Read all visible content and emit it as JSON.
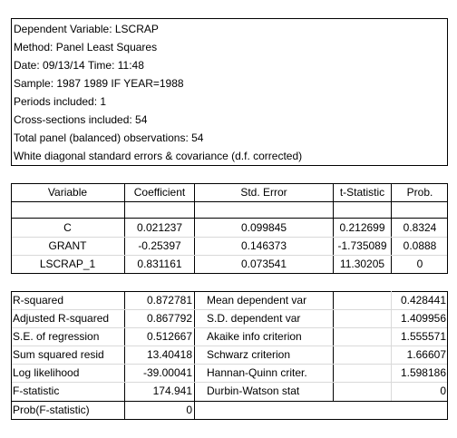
{
  "header": [
    "Dependent Variable: LSCRAP",
    "Method: Panel Least Squares",
    "Date: 09/13/14   Time: 11:48",
    "Sample: 1987 1989 IF YEAR=1988",
    "Periods included: 1",
    "Cross-sections included: 54",
    "Total panel (balanced) observations: 54",
    "White diagonal standard errors & covariance (d.f. corrected)"
  ],
  "coef_table": {
    "columns": [
      "Variable",
      "Coefficient",
      "Std. Error",
      "t-Statistic",
      "Prob."
    ],
    "rows": [
      {
        "variable": "C",
        "coefficient": "0.021237",
        "std_error": "0.099845",
        "t_stat": "0.212699",
        "prob": "0.8324"
      },
      {
        "variable": "GRANT",
        "coefficient": "-0.25397",
        "std_error": "0.146373",
        "t_stat": "-1.735089",
        "prob": "0.0888"
      },
      {
        "variable": "LSCRAP_1",
        "coefficient": "0.831161",
        "std_error": "0.073541",
        "t_stat": "11.30205",
        "prob": "0"
      }
    ]
  },
  "stats": [
    {
      "label": "R-squared",
      "value": "0.872781",
      "label2": "Mean dependent var",
      "value2": "0.428441"
    },
    {
      "label": "Adjusted R-squared",
      "value": "0.867792",
      "label2": "S.D. dependent var",
      "value2": "1.409956"
    },
    {
      "label": "S.E. of regression",
      "value": "0.512667",
      "label2": "Akaike info criterion",
      "value2": "1.555571"
    },
    {
      "label": "Sum squared resid",
      "value": "13.40418",
      "label2": "Schwarz criterion",
      "value2": "1.66607"
    },
    {
      "label": "Log likelihood",
      "value": "-39.00041",
      "label2": "Hannan-Quinn criter.",
      "value2": "1.598186"
    },
    {
      "label": "F-statistic",
      "value": "174.941",
      "label2": "Durbin-Watson stat",
      "value2": "0"
    },
    {
      "label": "Prob(F-statistic)",
      "value": "0",
      "label2": "",
      "value2": ""
    }
  ]
}
